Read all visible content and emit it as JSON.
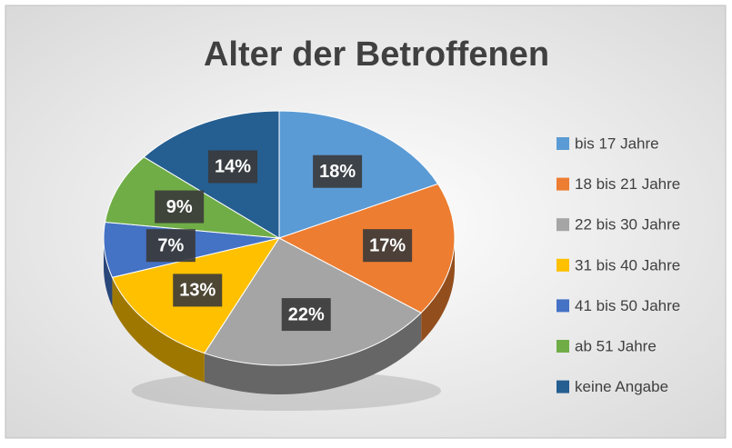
{
  "chart_data": {
    "type": "pie",
    "title": "Alter der Betroffenen",
    "categories": [
      "bis 17 Jahre",
      "18 bis 21 Jahre",
      "22 bis 30 Jahre",
      "31 bis 40 Jahre",
      "41 bis 50 Jahre",
      "ab 51 Jahre",
      "keine Angabe"
    ],
    "values": [
      18,
      17,
      22,
      13,
      7,
      9,
      14
    ],
    "value_labels": [
      "18%",
      "17%",
      "22%",
      "13%",
      "7%",
      "9%",
      "14%"
    ],
    "colors": [
      "#5B9BD5",
      "#ED7D31",
      "#A5A5A5",
      "#FFC000",
      "#4472C4",
      "#70AD47",
      "#255E91"
    ],
    "legend": "right"
  }
}
